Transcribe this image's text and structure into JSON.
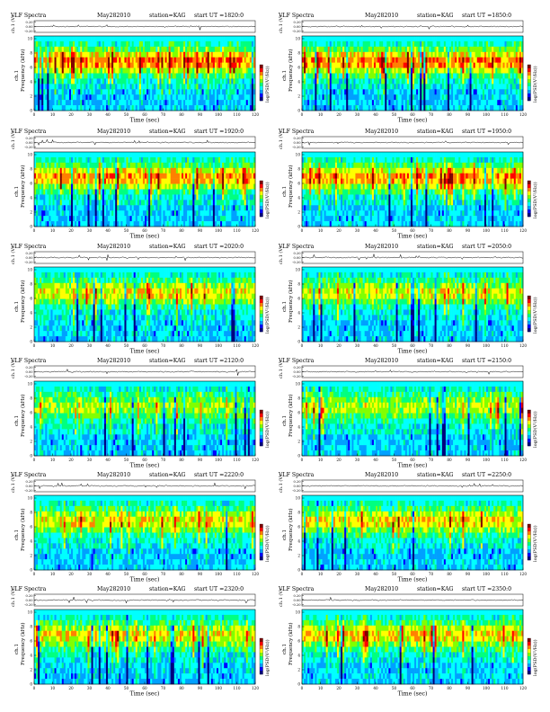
{
  "colors": {
    "background": "#ffffff",
    "colorbar": [
      "#00007f",
      "#0000ff",
      "#00a0ff",
      "#00ffff",
      "#00ff80",
      "#80ff00",
      "#ffff00",
      "#ff8000",
      "#ff0000",
      "#800000"
    ]
  },
  "chart_data": [
    {
      "type": "heatmap",
      "title": "VLF Spectra",
      "date": "May282010",
      "station": "station=KAG",
      "start_ut": "start UT =1820:0",
      "top_ylabel": "ch.1 (V)",
      "top_ticks": [
        "0.20",
        "0.00",
        "-0.20"
      ],
      "ylabel_channel": "ch.1",
      "ylabel": "Frequency (kHz)",
      "y_ticks": [
        "0",
        "2",
        "4",
        "6",
        "8",
        "10"
      ],
      "xlabel": "Time (sec)",
      "x_ticks": [
        "0",
        "10",
        "20",
        "30",
        "40",
        "50",
        "60",
        "70",
        "80",
        "90",
        "100",
        "110",
        "120"
      ],
      "xlim": [
        0,
        120
      ],
      "ylim": [
        0,
        10
      ],
      "colorbar_label": "log(PSD(V²/Hz))",
      "intensity": 0.75
    },
    {
      "type": "heatmap",
      "title": "VLF Spectra",
      "date": "May282010",
      "station": "station=KAG",
      "start_ut": "start UT =1850:0",
      "top_ylabel": "ch.1 (V)",
      "top_ticks": [
        "0.20",
        "0.00",
        "-0.20"
      ],
      "ylabel_channel": "ch.1",
      "ylabel": "Frequency (kHz)",
      "y_ticks": [
        "0",
        "2",
        "4",
        "6",
        "8",
        "10"
      ],
      "xlabel": "Time (sec)",
      "x_ticks": [
        "0",
        "10",
        "20",
        "30",
        "40",
        "50",
        "60",
        "70",
        "80",
        "90",
        "100",
        "110",
        "120"
      ],
      "xlim": [
        0,
        120
      ],
      "ylim": [
        0,
        10
      ],
      "colorbar_label": "log(PSD(V²/Hz))",
      "intensity": 0.75
    },
    {
      "type": "heatmap",
      "title": "VLF Spectra",
      "date": "May282010",
      "station": "station=KAG",
      "start_ut": "start UT =1920:0",
      "top_ylabel": "ch.1 (V)",
      "top_ticks": [
        "0.20",
        "0.00",
        "-0.20"
      ],
      "ylabel_channel": "ch.1",
      "ylabel": "Frequency (kHz)",
      "y_ticks": [
        "0",
        "2",
        "4",
        "6",
        "8",
        "10"
      ],
      "xlabel": "Time (sec)",
      "x_ticks": [
        "0",
        "10",
        "20",
        "30",
        "40",
        "50",
        "60",
        "70",
        "80",
        "90",
        "100",
        "110",
        "120"
      ],
      "xlim": [
        0,
        120
      ],
      "ylim": [
        0,
        10
      ],
      "colorbar_label": "log(PSD(V²/Hz))",
      "intensity": 0.7
    },
    {
      "type": "heatmap",
      "title": "VLF Spectra",
      "date": "May282010",
      "station": "station=KAG",
      "start_ut": "start UT =1950:0",
      "top_ylabel": "ch.1 (V)",
      "top_ticks": [
        "0.20",
        "0.00",
        "-0.20"
      ],
      "ylabel_channel": "ch.1",
      "ylabel": "Frequency (kHz)",
      "y_ticks": [
        "0",
        "2",
        "4",
        "6",
        "8",
        "10"
      ],
      "xlabel": "Time (sec)",
      "x_ticks": [
        "0",
        "10",
        "20",
        "30",
        "40",
        "50",
        "60",
        "70",
        "80",
        "90",
        "100",
        "110",
        "120"
      ],
      "xlim": [
        0,
        120
      ],
      "ylim": [
        0,
        10
      ],
      "colorbar_label": "log(PSD(V²/Hz))",
      "intensity": 0.7
    },
    {
      "type": "heatmap",
      "title": "VLF Spectra",
      "date": "May282010",
      "station": "station=KAG",
      "start_ut": "start UT =2020:0",
      "top_ylabel": "ch.1 (V)",
      "top_ticks": [
        "0.20",
        "0.00",
        "-0.20"
      ],
      "ylabel_channel": "ch.1",
      "ylabel": "Frequency (kHz)",
      "y_ticks": [
        "0",
        "2",
        "4",
        "6",
        "8",
        "10"
      ],
      "xlabel": "Time (sec)",
      "x_ticks": [
        "0",
        "10",
        "20",
        "30",
        "40",
        "50",
        "60",
        "70",
        "80",
        "90",
        "100",
        "110",
        "120"
      ],
      "xlim": [
        0,
        120
      ],
      "ylim": [
        0,
        10
      ],
      "colorbar_label": "log(PSD(V²/Hz))",
      "intensity": 0.55
    },
    {
      "type": "heatmap",
      "title": "VLF Spectra",
      "date": "May282010",
      "station": "station=KAG",
      "start_ut": "start UT =2050:0",
      "top_ylabel": "ch.1 (V)",
      "top_ticks": [
        "0.20",
        "0.00",
        "-0.20"
      ],
      "ylabel_channel": "ch.1",
      "ylabel": "Frequency (kHz)",
      "y_ticks": [
        "0",
        "2",
        "4",
        "6",
        "8",
        "10"
      ],
      "xlabel": "Time (sec)",
      "x_ticks": [
        "0",
        "10",
        "20",
        "30",
        "40",
        "50",
        "60",
        "70",
        "80",
        "90",
        "100",
        "110",
        "120"
      ],
      "xlim": [
        0,
        120
      ],
      "ylim": [
        0,
        10
      ],
      "colorbar_label": "log(PSD(V²/Hz))",
      "intensity": 0.5
    },
    {
      "type": "heatmap",
      "title": "VLF Spectra",
      "date": "May282010",
      "station": "station=KAG",
      "start_ut": "start UT =2120:0",
      "top_ylabel": "ch.1 (V)",
      "top_ticks": [
        "0.20",
        "0.00",
        "-0.20"
      ],
      "ylabel_channel": "ch.1",
      "ylabel": "Frequency (kHz)",
      "y_ticks": [
        "0",
        "2",
        "4",
        "6",
        "8",
        "10"
      ],
      "xlabel": "Time (sec)",
      "x_ticks": [
        "0",
        "10",
        "20",
        "30",
        "40",
        "50",
        "60",
        "70",
        "80",
        "90",
        "100",
        "110",
        "120"
      ],
      "xlim": [
        0,
        120
      ],
      "ylim": [
        0,
        10
      ],
      "colorbar_label": "log(PSD(V²/Hz))",
      "intensity": 0.4
    },
    {
      "type": "heatmap",
      "title": "VLF Spectra",
      "date": "May282010",
      "station": "station=KAG",
      "start_ut": "start UT =2150:0",
      "top_ylabel": "ch.1 (V)",
      "top_ticks": [
        "0.20",
        "0.00",
        "-0.20"
      ],
      "ylabel_channel": "ch.1",
      "ylabel": "Frequency (kHz)",
      "y_ticks": [
        "0",
        "2",
        "4",
        "6",
        "8",
        "10"
      ],
      "xlabel": "Time (sec)",
      "x_ticks": [
        "0",
        "10",
        "20",
        "30",
        "40",
        "50",
        "60",
        "70",
        "80",
        "90",
        "100",
        "110",
        "120"
      ],
      "xlim": [
        0,
        120
      ],
      "ylim": [
        0,
        10
      ],
      "colorbar_label": "log(PSD(V²/Hz))",
      "intensity": 0.45
    },
    {
      "type": "heatmap",
      "title": "VLF Spectra",
      "date": "May282010",
      "station": "station=KAG",
      "start_ut": "start UT =2220:0",
      "top_ylabel": "ch.1 (V)",
      "top_ticks": [
        "0.20",
        "0.00",
        "-0.20"
      ],
      "ylabel_channel": "ch.1",
      "ylabel": "Frequency (kHz)",
      "y_ticks": [
        "0",
        "2",
        "4",
        "6",
        "8",
        "10"
      ],
      "xlabel": "Time (sec)",
      "x_ticks": [
        "0",
        "10",
        "20",
        "30",
        "40",
        "50",
        "60",
        "70",
        "80",
        "90",
        "100",
        "110",
        "120"
      ],
      "xlim": [
        0,
        120
      ],
      "ylim": [
        0,
        10
      ],
      "colorbar_label": "log(PSD(V²/Hz))",
      "intensity": 0.55
    },
    {
      "type": "heatmap",
      "title": "VLF Spectra",
      "date": "May282010",
      "station": "station=KAG",
      "start_ut": "start UT =2250:0",
      "top_ylabel": "ch.1 (V)",
      "top_ticks": [
        "0.20",
        "0.00",
        "-0.20"
      ],
      "ylabel_channel": "ch.1",
      "ylabel": "Frequency (kHz)",
      "y_ticks": [
        "0",
        "2",
        "4",
        "6",
        "8",
        "10"
      ],
      "xlabel": "Time (sec)",
      "x_ticks": [
        "0",
        "10",
        "20",
        "30",
        "40",
        "50",
        "60",
        "70",
        "80",
        "90",
        "100",
        "110",
        "120"
      ],
      "xlim": [
        0,
        120
      ],
      "ylim": [
        0,
        10
      ],
      "colorbar_label": "log(PSD(V²/Hz))",
      "intensity": 0.6
    },
    {
      "type": "heatmap",
      "title": "VLF Spectra",
      "date": "May282010",
      "station": "station=KAG",
      "start_ut": "start UT =2320:0",
      "top_ylabel": "ch.1 (V)",
      "top_ticks": [
        "0.20",
        "0.00",
        "-0.20"
      ],
      "ylabel_channel": "ch.1",
      "ylabel": "Frequency (kHz)",
      "y_ticks": [
        "0",
        "2",
        "4",
        "6",
        "8",
        "10"
      ],
      "xlabel": "Time (sec)",
      "x_ticks": [
        "0",
        "10",
        "20",
        "30",
        "40",
        "50",
        "60",
        "70",
        "80",
        "90",
        "100",
        "110",
        "120"
      ],
      "xlim": [
        0,
        120
      ],
      "ylim": [
        0,
        10
      ],
      "colorbar_label": "log(PSD(V²/Hz))",
      "intensity": 0.55
    },
    {
      "type": "heatmap",
      "title": "VLF Spectra",
      "date": "May282010",
      "station": "station=KAG",
      "start_ut": "start UT =2350:0",
      "top_ylabel": "ch.1 (V)",
      "top_ticks": [
        "0.20",
        "0.00",
        "-0.20"
      ],
      "ylabel_channel": "ch.1",
      "ylabel": "Frequency (kHz)",
      "y_ticks": [
        "0",
        "2",
        "4",
        "6",
        "8",
        "10"
      ],
      "xlabel": "Time (sec)",
      "x_ticks": [
        "0",
        "10",
        "20",
        "30",
        "40",
        "50",
        "60",
        "70",
        "80",
        "90",
        "100",
        "110",
        "120"
      ],
      "xlim": [
        0,
        120
      ],
      "ylim": [
        0,
        10
      ],
      "colorbar_label": "log(PSD(V²/Hz))",
      "intensity": 0.6
    }
  ]
}
